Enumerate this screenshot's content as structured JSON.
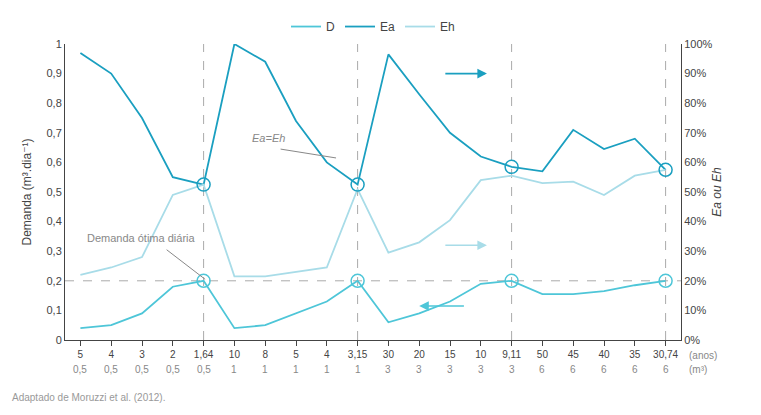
{
  "chart_data": {
    "type": "line",
    "categories": [
      "5",
      "4",
      "3",
      "2",
      "1,64",
      "10",
      "8",
      "5",
      "4",
      "3,15",
      "30",
      "20",
      "15",
      "10",
      "9,11",
      "50",
      "45",
      "40",
      "35",
      "30,74"
    ],
    "categories2": [
      "0,5",
      "0,5",
      "0,5",
      "0,5",
      "0,5",
      "1",
      "1",
      "1",
      "1",
      "1",
      "3",
      "3",
      "3",
      "3",
      "3",
      "6",
      "6",
      "6",
      "6",
      "6"
    ],
    "xlabel": "(anos)",
    "xlabel2": "(m³)",
    "ylabel": "Demanda (m³.dia⁻¹)",
    "y2label": "Ea ou Eh",
    "ylim": [
      0,
      1.0
    ],
    "yticks": [
      0,
      {
        "value": 0.1,
        "label": "0,1"
      },
      {
        "value": 0.2,
        "label": "0,2"
      },
      {
        "value": 0.3,
        "label": "0,3"
      },
      {
        "value": 0.4,
        "label": "0,4"
      },
      {
        "value": 0.5,
        "label": "0,5"
      },
      {
        "value": 0.6,
        "label": "0,6"
      },
      {
        "value": 0.7,
        "label": "0,7"
      },
      {
        "value": 0.8,
        "label": "0,8"
      },
      {
        "value": 0.9,
        "label": "0,9"
      },
      1
    ],
    "y2lim": [
      0,
      1.0
    ],
    "y2ticks": [
      {
        "value": 0,
        "label": "0%"
      },
      {
        "value": 0.1,
        "label": "10%"
      },
      {
        "value": 0.2,
        "label": "20%"
      },
      {
        "value": 0.3,
        "label": "30%"
      },
      {
        "value": 0.4,
        "label": "40%"
      },
      {
        "value": 0.5,
        "label": "50%"
      },
      {
        "value": 0.6,
        "label": "60%"
      },
      {
        "value": 0.7,
        "label": "70%"
      },
      {
        "value": 0.8,
        "label": "80%"
      },
      {
        "value": 0.9,
        "label": "90%"
      },
      {
        "value": 1.0,
        "label": "100%"
      }
    ],
    "grid": false,
    "legend": "top",
    "series": [
      {
        "name": "D",
        "color": "#4ec6d8",
        "values": [
          0.04,
          0.05,
          0.09,
          0.18,
          0.2,
          0.04,
          0.05,
          0.09,
          0.13,
          0.2,
          0.06,
          0.09,
          0.13,
          0.19,
          0.2,
          0.155,
          0.155,
          0.165,
          0.185,
          0.2
        ]
      },
      {
        "name": "Ea",
        "color": "#1a9fc0",
        "values": [
          0.97,
          0.9,
          0.75,
          0.55,
          0.525,
          1.0,
          0.94,
          0.74,
          0.6,
          0.525,
          0.965,
          0.83,
          0.7,
          0.62,
          0.585,
          0.57,
          0.71,
          0.645,
          0.68,
          0.575
        ]
      },
      {
        "name": "Eh",
        "color": "#a8dce8",
        "values": [
          0.22,
          0.245,
          0.28,
          0.49,
          0.525,
          0.215,
          0.215,
          0.23,
          0.245,
          0.51,
          0.295,
          0.33,
          0.405,
          0.54,
          0.555,
          0.53,
          0.535,
          0.49,
          0.555,
          0.575
        ]
      }
    ],
    "reference_lines": {
      "y": [
        0.2
      ],
      "x": [
        4,
        9,
        14,
        19
      ]
    },
    "highlight_points": {
      "x": [
        4,
        9,
        14,
        19
      ],
      "series": [
        {
          "name": "Ea",
          "values": [
            0.525,
            0.525,
            0.585,
            0.575
          ]
        },
        {
          "name": "D",
          "values": [
            0.2,
            0.2,
            0.2,
            0.2
          ]
        }
      ]
    },
    "arrows": [
      {
        "series": "Ea",
        "from": 11.8,
        "to": 13.2,
        "y": 0.9
      },
      {
        "series": "Eh",
        "from": 11.8,
        "to": 13.2,
        "y": 0.32
      },
      {
        "series": "D",
        "from": 12.5,
        "to": 11.0,
        "y": 0.115
      }
    ],
    "annotations": [
      {
        "text": "Ea=Eh",
        "x": 5.5,
        "y": 0.655,
        "line": [
          [
            6.5,
            0.645
          ],
          [
            8.3,
            0.615
          ]
        ]
      },
      {
        "text": "Demanda ótima diária",
        "x": 0.15,
        "y": 0.318,
        "line": [
          [
            2.8,
            0.305
          ],
          [
            4.05,
            0.205
          ]
        ]
      }
    ],
    "source": "Adaptado de Moruzzi et al. (2012)."
  }
}
